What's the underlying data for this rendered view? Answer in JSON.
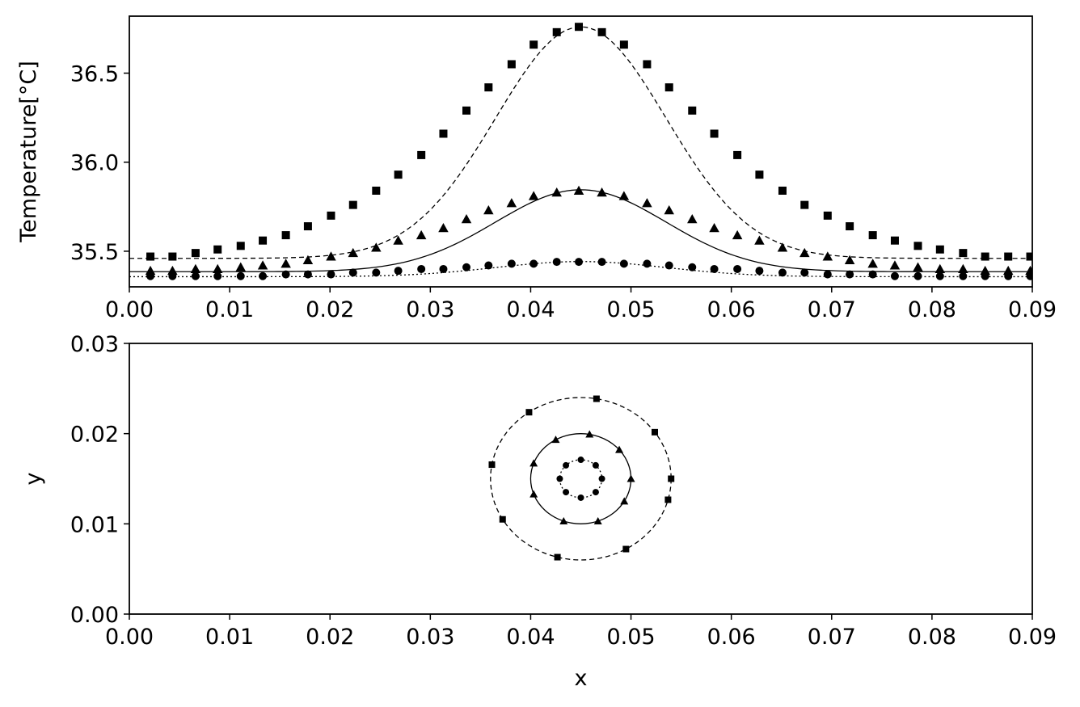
{
  "chart_data": [
    {
      "type": "line",
      "title": "",
      "xlabel": "",
      "ylabel": "Temperature[$^{\\circ}C$]",
      "ylabel_display": "Temperature[°C]",
      "xlim": [
        0.0,
        0.09
      ],
      "ylim": [
        35.3,
        36.82
      ],
      "xticks": [
        "0.00",
        "0.01",
        "0.02",
        "0.03",
        "0.04",
        "0.05",
        "0.06",
        "0.07",
        "0.08",
        "0.09"
      ],
      "yticks": [
        "35.5",
        "36.0",
        "36.5"
      ],
      "ytick_values": [
        35.5,
        36.0,
        36.5
      ],
      "grid": false,
      "legend": "none",
      "series": [
        {
          "marker": "square",
          "linestyle": "dashed",
          "base": 35.46,
          "amplitude": 1.3,
          "center": 0.045,
          "width": 0.012,
          "marker_x": [
            0.0021,
            0.0043,
            0.0066,
            0.0088,
            0.0111,
            0.0133,
            0.0156,
            0.0178,
            0.0201,
            0.0223,
            0.0246,
            0.0268,
            0.0291,
            0.0313,
            0.0336,
            0.0358,
            0.0381,
            0.0403,
            0.0426,
            0.0448,
            0.0471,
            0.0493,
            0.0516,
            0.0538,
            0.0561,
            0.0583,
            0.0606,
            0.0628,
            0.0651,
            0.0673,
            0.0696,
            0.0718,
            0.0741,
            0.0763,
            0.0786,
            0.0808,
            0.0831,
            0.0853,
            0.0876,
            0.0898
          ],
          "marker_y": [
            35.47,
            35.47,
            35.49,
            35.51,
            35.53,
            35.56,
            35.59,
            35.64,
            35.7,
            35.76,
            35.84,
            35.93,
            36.04,
            36.16,
            36.29,
            36.42,
            36.55,
            36.66,
            36.73,
            36.76,
            36.73,
            36.66,
            36.55,
            36.42,
            36.29,
            36.16,
            36.04,
            35.93,
            35.84,
            35.76,
            35.7,
            35.64,
            35.59,
            35.56,
            35.53,
            35.51,
            35.49,
            35.47,
            35.47,
            35.47
          ]
        },
        {
          "marker": "triangle",
          "linestyle": "solid",
          "base": 35.385,
          "amplitude": 0.46,
          "center": 0.045,
          "width": 0.012,
          "marker_x": [
            0.0021,
            0.0043,
            0.0066,
            0.0088,
            0.0111,
            0.0133,
            0.0156,
            0.0178,
            0.0201,
            0.0223,
            0.0246,
            0.0268,
            0.0291,
            0.0313,
            0.0336,
            0.0358,
            0.0381,
            0.0403,
            0.0426,
            0.0448,
            0.0471,
            0.0493,
            0.0516,
            0.0538,
            0.0561,
            0.0583,
            0.0606,
            0.0628,
            0.0651,
            0.0673,
            0.0696,
            0.0718,
            0.0741,
            0.0763,
            0.0786,
            0.0808,
            0.0831,
            0.0853,
            0.0876,
            0.0898
          ],
          "marker_y": [
            35.39,
            35.39,
            35.4,
            35.4,
            35.41,
            35.42,
            35.43,
            35.45,
            35.47,
            35.49,
            35.52,
            35.56,
            35.59,
            35.63,
            35.68,
            35.73,
            35.77,
            35.81,
            35.83,
            35.84,
            35.83,
            35.81,
            35.77,
            35.73,
            35.68,
            35.63,
            35.59,
            35.56,
            35.52,
            35.49,
            35.47,
            35.45,
            35.43,
            35.42,
            35.41,
            35.4,
            35.4,
            35.39,
            35.39,
            35.39
          ]
        },
        {
          "marker": "circle",
          "linestyle": "dotted",
          "base": 35.357,
          "amplitude": 0.085,
          "center": 0.045,
          "width": 0.012,
          "marker_x": [
            0.0021,
            0.0043,
            0.0066,
            0.0088,
            0.0111,
            0.0133,
            0.0156,
            0.0178,
            0.0201,
            0.0223,
            0.0246,
            0.0268,
            0.0291,
            0.0313,
            0.0336,
            0.0358,
            0.0381,
            0.0403,
            0.0426,
            0.0448,
            0.0471,
            0.0493,
            0.0516,
            0.0538,
            0.0561,
            0.0583,
            0.0606,
            0.0628,
            0.0651,
            0.0673,
            0.0696,
            0.0718,
            0.0741,
            0.0763,
            0.0786,
            0.0808,
            0.0831,
            0.0853,
            0.0876,
            0.0898
          ],
          "marker_y": [
            35.36,
            35.36,
            35.36,
            35.36,
            35.36,
            35.36,
            35.37,
            35.37,
            35.37,
            35.38,
            35.38,
            35.39,
            35.4,
            35.4,
            35.41,
            35.42,
            35.43,
            35.43,
            35.44,
            35.44,
            35.44,
            35.43,
            35.43,
            35.42,
            35.41,
            35.4,
            35.4,
            35.39,
            35.38,
            35.38,
            35.37,
            35.37,
            35.37,
            35.36,
            35.36,
            35.36,
            35.36,
            35.36,
            35.36,
            35.36
          ]
        }
      ]
    },
    {
      "type": "line",
      "subtype": "contour",
      "title": "",
      "xlabel": "x",
      "ylabel": "y",
      "xlim": [
        0.0,
        0.09
      ],
      "ylim": [
        0.0,
        0.03
      ],
      "xticks": [
        "0.00",
        "0.01",
        "0.02",
        "0.03",
        "0.04",
        "0.05",
        "0.06",
        "0.07",
        "0.08",
        "0.09"
      ],
      "yticks": [
        "0.00",
        "0.01",
        "0.02",
        "0.03"
      ],
      "ytick_values": [
        0.0,
        0.01,
        0.02,
        0.03
      ],
      "grid": false,
      "legend": "none",
      "center": [
        0.045,
        0.015
      ],
      "contours": [
        {
          "marker": "square",
          "linestyle": "dashed",
          "radius": 0.009,
          "marker_angles_deg": [
            0,
            35,
            80,
            125,
            170,
            210,
            255,
            300,
            345
          ]
        },
        {
          "marker": "triangle",
          "linestyle": "solid",
          "radius": 0.005,
          "marker_angles_deg": [
            0,
            40,
            80,
            120,
            160,
            200,
            250,
            290,
            330
          ]
        },
        {
          "marker": "circle",
          "linestyle": "dotted",
          "radius": 0.0021,
          "marker_angles_deg": [
            0,
            45,
            90,
            135,
            180,
            225,
            270,
            315
          ]
        }
      ]
    }
  ]
}
